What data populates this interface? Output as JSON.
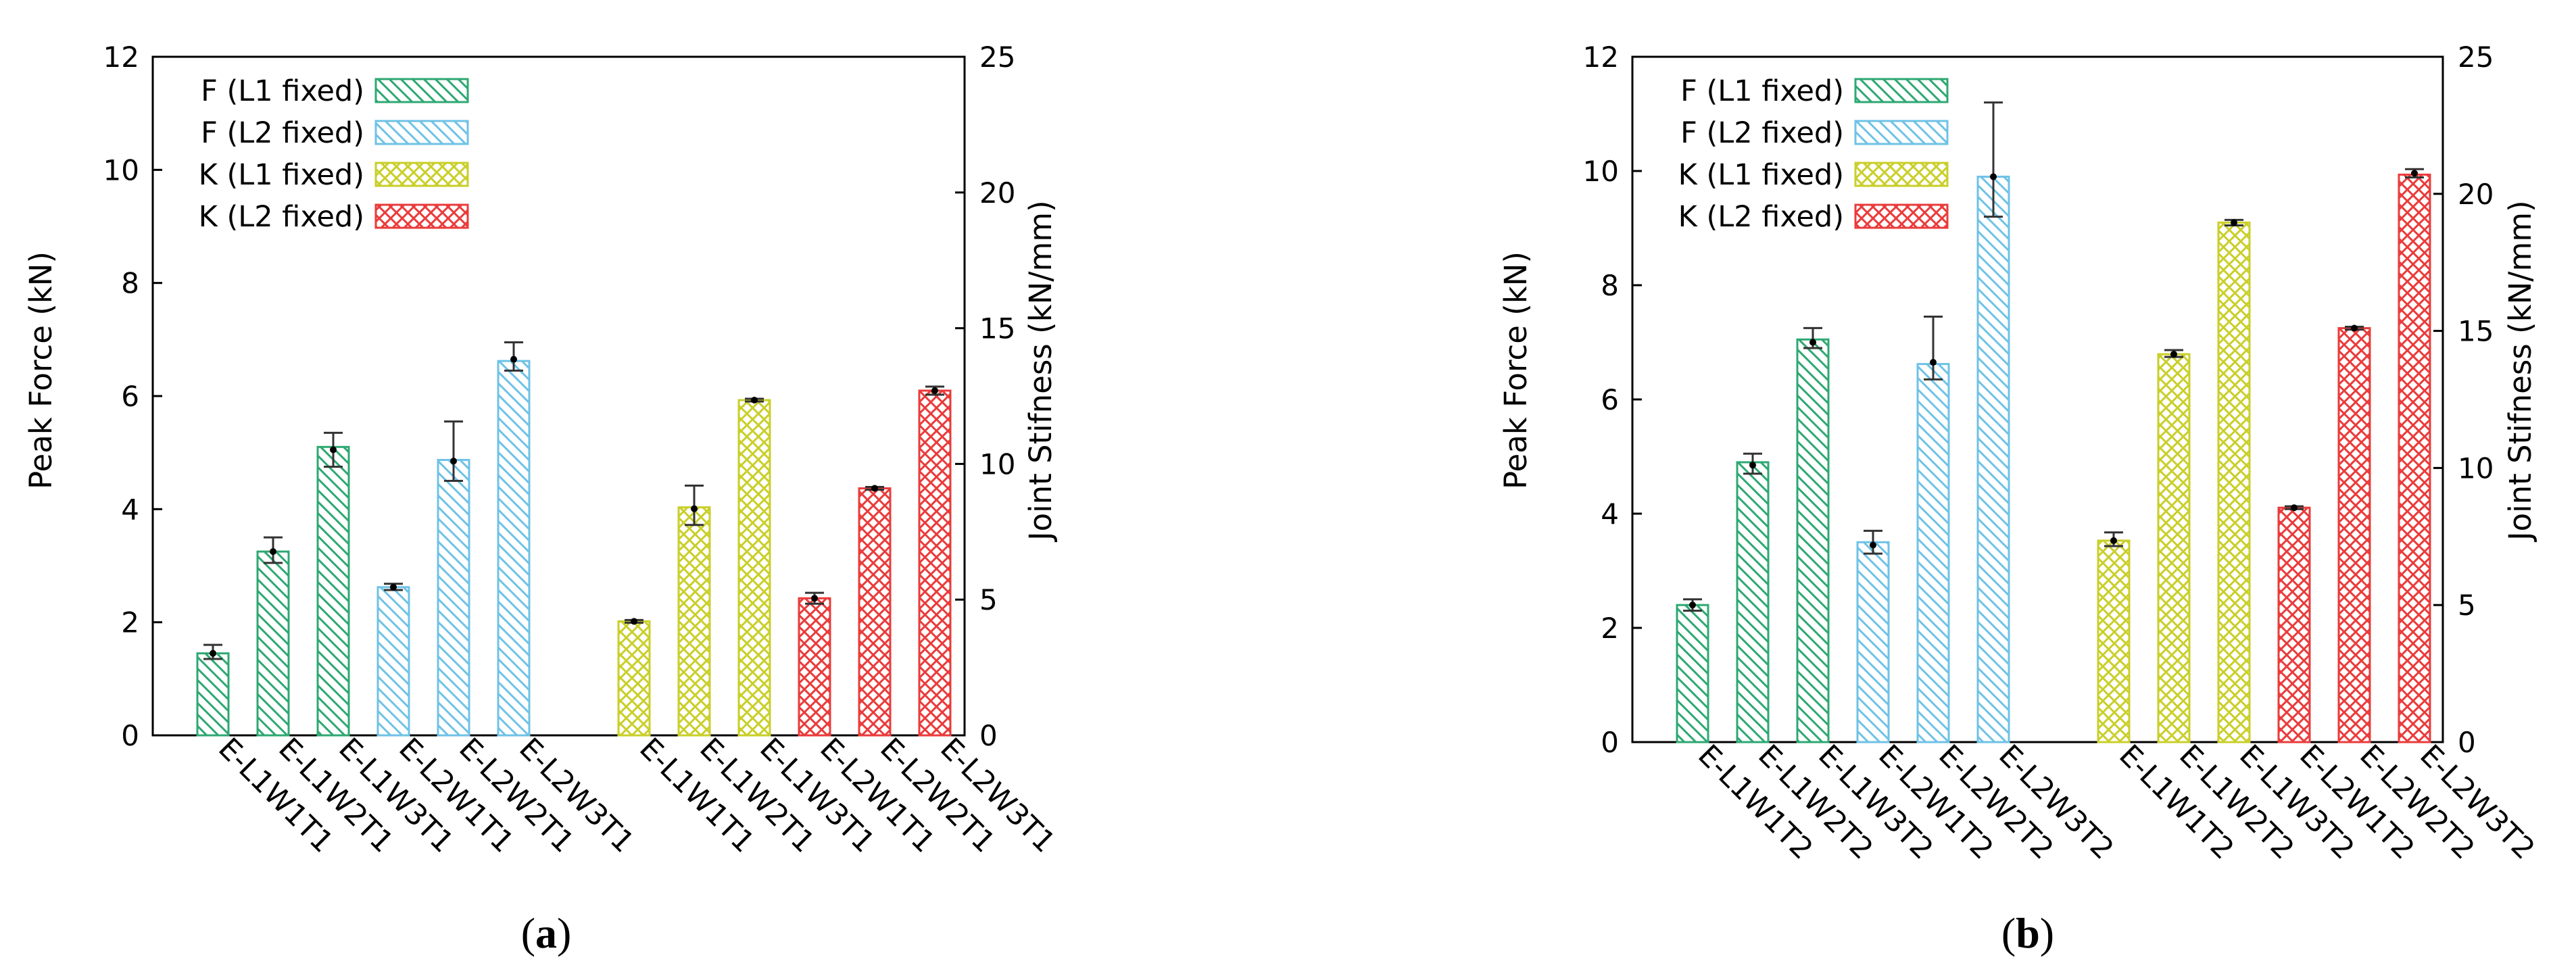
{
  "chart_data": [
    {
      "type": "bar",
      "panel_label": "a",
      "ylabel": "Peak Force (kN)",
      "y2label": "Joint Stifness (kN/mm)",
      "ylim": [
        0,
        12
      ],
      "y2lim": [
        0,
        25
      ],
      "yticks": [
        "0",
        "2",
        "4",
        "6",
        "8",
        "10",
        "12"
      ],
      "y2ticks": [
        "0",
        "5",
        "10",
        "15",
        "20",
        "25"
      ],
      "legend_position": "top-left",
      "legend": [
        {
          "key": "F1",
          "label": "F (L1 fixed)"
        },
        {
          "key": "F2",
          "label": "F (L2 fixed)"
        },
        {
          "key": "K1",
          "label": "K (L1 fixed)"
        },
        {
          "key": "K2",
          "label": "K (L2 fixed)"
        }
      ],
      "series": [
        {
          "name": "F (L1 fixed)",
          "axis": "left",
          "categories": [
            "E-L1W1T1",
            "E-L1W2T1",
            "E-L1W3T1"
          ],
          "values": [
            1.45,
            3.25,
            5.1
          ],
          "err_high": [
            1.6,
            3.5,
            5.35
          ],
          "err_low": [
            1.35,
            3.05,
            4.75
          ],
          "means": [
            1.45,
            3.25,
            5.05
          ]
        },
        {
          "name": "F (L2 fixed)",
          "axis": "left",
          "categories": [
            "E-L2W1T1",
            "E-L2W2T1",
            "E-L2W3T1"
          ],
          "values": [
            2.62,
            4.87,
            6.62
          ],
          "err_high": [
            2.68,
            5.55,
            6.95
          ],
          "err_low": [
            2.57,
            4.5,
            6.45
          ],
          "means": [
            2.62,
            4.85,
            6.65
          ]
        },
        {
          "name": "K (L1 fixed)",
          "axis": "right",
          "categories": [
            "E-L1W1T1",
            "E-L1W2T1",
            "E-L1W3T1"
          ],
          "values": [
            4.2,
            8.4,
            12.35
          ],
          "err_high": [
            4.25,
            9.2,
            12.4
          ],
          "err_low": [
            4.15,
            7.75,
            12.3
          ],
          "means": [
            4.2,
            8.35,
            12.35
          ]
        },
        {
          "name": "K (L2 fixed)",
          "axis": "right",
          "categories": [
            "E-L2W1T1",
            "E-L2W2T1",
            "E-L2W3T1"
          ],
          "values": [
            5.05,
            9.1,
            12.7
          ],
          "err_high": [
            5.25,
            9.15,
            12.85
          ],
          "err_low": [
            4.85,
            9.05,
            12.55
          ],
          "means": [
            5.05,
            9.1,
            12.7
          ]
        }
      ]
    },
    {
      "type": "bar",
      "panel_label": "b",
      "ylabel": "Peak Force (kN)",
      "y2label": "Joint Stifness (kN/mm)",
      "ylim": [
        0,
        12
      ],
      "y2lim": [
        0,
        25
      ],
      "yticks": [
        "0",
        "2",
        "4",
        "6",
        "8",
        "10",
        "12"
      ],
      "y2ticks": [
        "0",
        "5",
        "10",
        "15",
        "20",
        "25"
      ],
      "legend_position": "top-left",
      "legend": [
        {
          "key": "F1",
          "label": "F (L1 fixed)"
        },
        {
          "key": "F2",
          "label": "F (L2 fixed)"
        },
        {
          "key": "K1",
          "label": "K (L1 fixed)"
        },
        {
          "key": "K2",
          "label": "K (L2 fixed)"
        }
      ],
      "series": [
        {
          "name": "F (L1 fixed)",
          "axis": "left",
          "categories": [
            "E-L1W1T2",
            "E-L1W2T2",
            "E-L1W3T2"
          ],
          "values": [
            2.4,
            4.9,
            7.05
          ],
          "err_high": [
            2.5,
            5.05,
            7.25
          ],
          "err_low": [
            2.3,
            4.7,
            6.9
          ],
          "means": [
            2.4,
            4.85,
            7.0
          ]
        },
        {
          "name": "F (L2 fixed)",
          "axis": "left",
          "categories": [
            "E-L2W1T2",
            "E-L2W2T2",
            "E-L2W3T2"
          ],
          "values": [
            3.5,
            6.62,
            9.9
          ],
          "err_high": [
            3.7,
            7.45,
            11.2
          ],
          "err_low": [
            3.3,
            6.35,
            9.2
          ],
          "means": [
            3.45,
            6.65,
            9.9
          ]
        },
        {
          "name": "K (L1 fixed)",
          "axis": "right",
          "categories": [
            "E-L1W1T2",
            "E-L1W2T2",
            "E-L1W3T2"
          ],
          "values": [
            7.35,
            14.15,
            18.95
          ],
          "err_high": [
            7.65,
            14.3,
            19.05
          ],
          "err_low": [
            7.15,
            14.05,
            18.85
          ],
          "means": [
            7.35,
            14.15,
            18.95
          ]
        },
        {
          "name": "K (L2 fixed)",
          "axis": "right",
          "categories": [
            "E-L2W1T2",
            "E-L2W2T2",
            "E-L2W3T2"
          ],
          "values": [
            8.55,
            15.1,
            20.7
          ],
          "err_high": [
            8.6,
            15.15,
            20.9
          ],
          "err_low": [
            8.5,
            15.05,
            20.6
          ],
          "means": [
            8.55,
            15.1,
            20.75
          ]
        }
      ]
    }
  ],
  "colors": {
    "F1": "#2ea872",
    "F2": "#6fc2e6",
    "K1": "#c9cf2a",
    "K2": "#ea3b3b",
    "axis": "#000000",
    "error": "#333333"
  }
}
